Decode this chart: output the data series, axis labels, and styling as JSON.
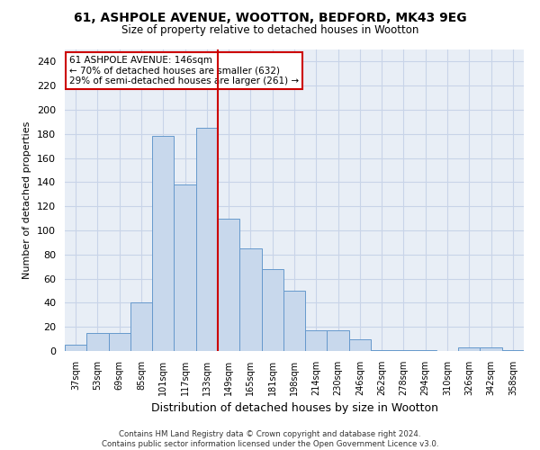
{
  "title_line1": "61, ASHPOLE AVENUE, WOOTTON, BEDFORD, MK43 9EG",
  "title_line2": "Size of property relative to detached houses in Wootton",
  "xlabel": "Distribution of detached houses by size in Wootton",
  "ylabel": "Number of detached properties",
  "categories": [
    "37sqm",
    "53sqm",
    "69sqm",
    "85sqm",
    "101sqm",
    "117sqm",
    "133sqm",
    "149sqm",
    "165sqm",
    "181sqm",
    "198sqm",
    "214sqm",
    "230sqm",
    "246sqm",
    "262sqm",
    "278sqm",
    "294sqm",
    "310sqm",
    "326sqm",
    "342sqm",
    "358sqm"
  ],
  "values": [
    5,
    15,
    15,
    40,
    178,
    138,
    185,
    110,
    85,
    68,
    50,
    17,
    17,
    10,
    1,
    1,
    1,
    0,
    3,
    3,
    1
  ],
  "bar_color": "#c8d8ec",
  "bar_edge_color": "#6699cc",
  "vline_color": "#cc0000",
  "annotation_text": "61 ASHPOLE AVENUE: 146sqm\n← 70% of detached houses are smaller (632)\n29% of semi-detached houses are larger (261) →",
  "annotation_box_color": "#ffffff",
  "annotation_box_edge_color": "#cc0000",
  "ylim": [
    0,
    250
  ],
  "yticks": [
    0,
    20,
    40,
    60,
    80,
    100,
    120,
    140,
    160,
    180,
    200,
    220,
    240
  ],
  "grid_color": "#c8d4e8",
  "background_color": "#e8eef6",
  "footer_line1": "Contains HM Land Registry data © Crown copyright and database right 2024.",
  "footer_line2": "Contains public sector information licensed under the Open Government Licence v3.0."
}
